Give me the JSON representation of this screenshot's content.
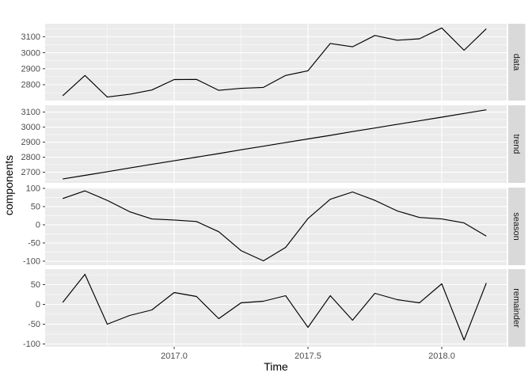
{
  "chart_data": {
    "type": "line",
    "title": "",
    "xlabel": "Time",
    "ylabel": "components",
    "legend": "none",
    "grid": "major-and-minor-white-on-grey",
    "x_start": 2016.5833,
    "x_step": 0.0833333,
    "x_axis": {
      "range": [
        2016.518,
        2018.243
      ],
      "major_ticks": [
        2017.0,
        2017.5,
        2018.0
      ],
      "tick_labels": [
        "2017.0",
        "2017.5",
        "2018.0"
      ],
      "minor_ticks": [
        2016.75,
        2017.25,
        2017.75
      ]
    },
    "facets": [
      {
        "label": "data",
        "y_range": [
          2701,
          3181
        ],
        "y_major_ticks": [
          2800,
          2900,
          3000,
          3100
        ],
        "y_tick_labels": [
          "2800",
          "2900",
          "3000",
          "3100"
        ],
        "y_minor_ticks": [
          2750,
          2850,
          2950,
          3050,
          3150
        ],
        "values": [
          2731,
          2858,
          2723,
          2740,
          2767,
          2832,
          2833,
          2765,
          2777,
          2783,
          2858,
          2887,
          3058,
          3037,
          3108,
          3078,
          3087,
          3155,
          3015,
          3150
        ]
      },
      {
        "label": "trend",
        "y_range": [
          2629,
          3145
        ],
        "y_major_ticks": [
          2700,
          2800,
          2900,
          3000,
          3100
        ],
        "y_tick_labels": [
          "2700",
          "2800",
          "2900",
          "3000",
          "3100"
        ],
        "y_minor_ticks": [
          2650,
          2750,
          2850,
          2950,
          3050,
          3150
        ],
        "values": [
          2655,
          2679,
          2703,
          2728,
          2752,
          2776,
          2800,
          2824,
          2849,
          2873,
          2897,
          2921,
          2945,
          2970,
          2994,
          3018,
          3042,
          3066,
          3091,
          3115
        ]
      },
      {
        "label": "season",
        "y_range": [
          -111,
          102
        ],
        "y_major_ticks": [
          -100,
          -50,
          0,
          50,
          100
        ],
        "y_tick_labels": [
          "-100",
          "-50",
          "0",
          "50",
          "100"
        ],
        "y_minor_ticks": [
          -75,
          -25,
          25,
          75
        ],
        "values": [
          72,
          93,
          67,
          36,
          16,
          13,
          9,
          -19,
          -71,
          -99,
          -62,
          17,
          70,
          90,
          67,
          38,
          20,
          16,
          5,
          -31
        ]
      },
      {
        "label": "remainder",
        "y_range": [
          -107,
          89
        ],
        "y_major_ticks": [
          -100,
          -50,
          0,
          50
        ],
        "y_tick_labels": [
          "-100",
          "-50",
          "0",
          "50"
        ],
        "y_minor_ticks": [
          -75,
          -25,
          25,
          75
        ],
        "values": [
          5,
          76,
          -50,
          -28,
          -14,
          30,
          20,
          -36,
          4,
          8,
          22,
          -58,
          22,
          -40,
          28,
          12,
          4,
          52,
          -90,
          54
        ]
      }
    ]
  },
  "style": {
    "background": "#FFFFFF",
    "panel_bg": "#EBEBEB",
    "grid_color": "#FFFFFF",
    "strip_bg": "#D9D9D9",
    "strip_text_color": "#1A1A1A",
    "line_color": "#000000",
    "tick_label_color": "#4D4D4D",
    "tick_mark_color": "#333333",
    "axis_title_color": "#000000"
  }
}
